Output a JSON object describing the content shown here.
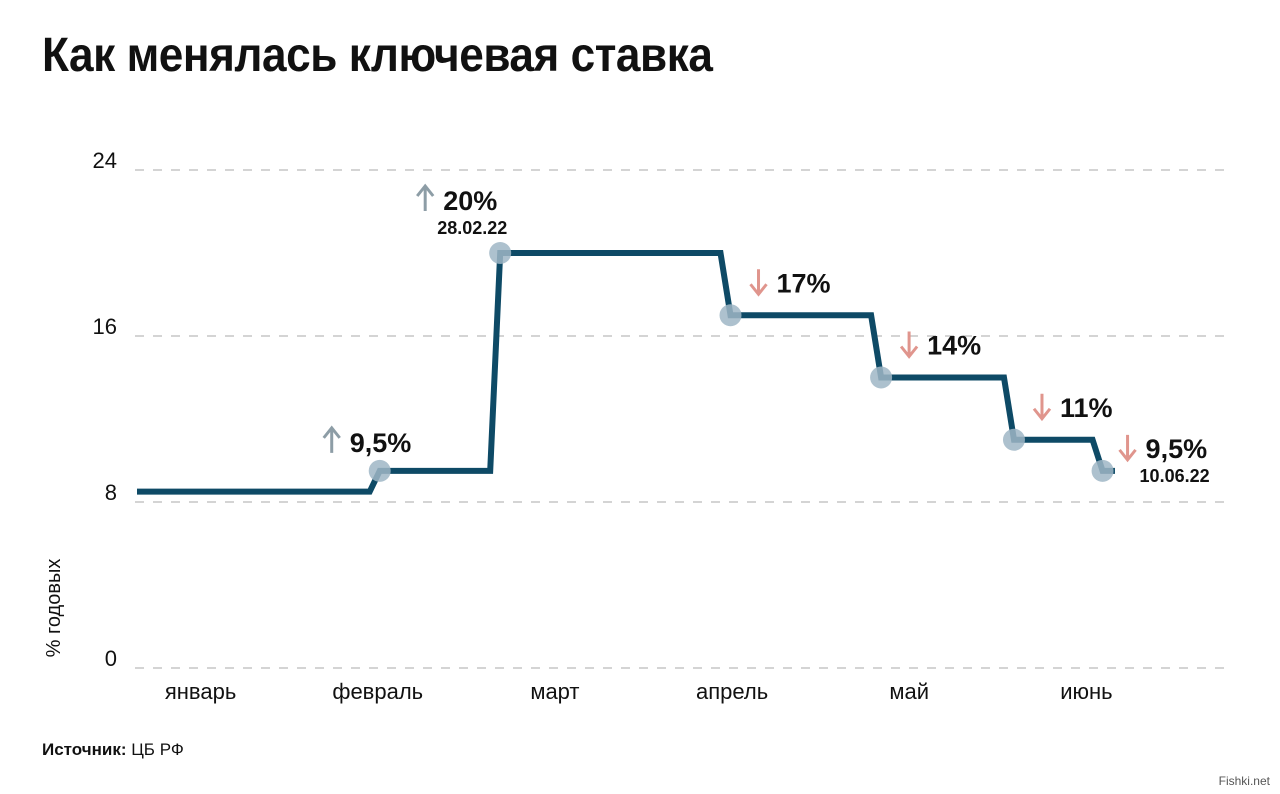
{
  "title": "Как менялась ключевая ставка",
  "source": {
    "label": "Источник:",
    "value": "ЦБ РФ"
  },
  "watermark": "Fishki.net",
  "colors": {
    "line": "#0e4a66",
    "marker": "#9fb6c6",
    "up_arrow": "#8d9da6",
    "down_arrow": "#e0958d",
    "grid": "#bbbbbb",
    "text": "#111111"
  },
  "chart_data": {
    "type": "line",
    "step": true,
    "ylabel": "% годовых",
    "ylim": [
      0,
      24
    ],
    "yticks": [
      0,
      8,
      16,
      24
    ],
    "grid": true,
    "categories": [
      "январь",
      "февраль",
      "март",
      "апрель",
      "май",
      "июнь"
    ],
    "xlim": [
      0,
      6
    ],
    "series": [
      {
        "values": [
          {
            "x": 0.0,
            "y": 8.5
          },
          {
            "x": 1.37,
            "y": 9.5
          },
          {
            "x": 2.05,
            "y": 20
          },
          {
            "x": 3.35,
            "y": 17
          },
          {
            "x": 4.2,
            "y": 14
          },
          {
            "x": 4.95,
            "y": 11
          },
          {
            "x": 5.45,
            "y": 9.5
          },
          {
            "x": 5.52,
            "y": 9.5
          }
        ]
      }
    ],
    "annotations": [
      {
        "x": 1.37,
        "y": 9.5,
        "label": "9,5%",
        "direction": "up",
        "date": ""
      },
      {
        "x": 2.05,
        "y": 20,
        "label": "20%",
        "direction": "up",
        "date": "28.02.22"
      },
      {
        "x": 3.35,
        "y": 17,
        "label": "17%",
        "direction": "down",
        "date": ""
      },
      {
        "x": 4.2,
        "y": 14,
        "label": "14%",
        "direction": "down",
        "date": ""
      },
      {
        "x": 4.95,
        "y": 11,
        "label": "11%",
        "direction": "down",
        "date": ""
      },
      {
        "x": 5.45,
        "y": 9.5,
        "label": "9,5%",
        "direction": "down",
        "date": "10.06.22"
      }
    ]
  }
}
